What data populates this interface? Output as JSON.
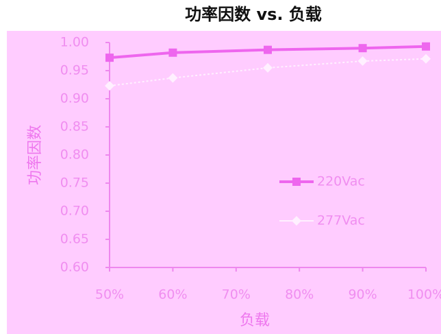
{
  "chart_data": {
    "type": "line",
    "title": "功率因数 vs. 负载",
    "x_label": "负载",
    "y_label": "功率因数",
    "x": [
      50,
      60,
      75,
      90,
      100
    ],
    "series": [
      {
        "name": "220Vac",
        "color": "#ee66ee",
        "marker": "square",
        "values": [
          0.973,
          0.982,
          0.987,
          0.99,
          0.993
        ]
      },
      {
        "name": "277Vac",
        "color": "#fff0ff",
        "marker": "diamond",
        "values": [
          0.923,
          0.937,
          0.955,
          0.967,
          0.971
        ]
      }
    ],
    "xlim": [
      50,
      100
    ],
    "xticks": [
      {
        "value": 50,
        "label": "50%"
      },
      {
        "value": 60,
        "label": "60%"
      },
      {
        "value": 70,
        "label": "70%"
      },
      {
        "value": 80,
        "label": "80%"
      },
      {
        "value": 90,
        "label": "90%"
      },
      {
        "value": 100,
        "label": "100%"
      }
    ],
    "ylim": [
      0.6,
      1.0
    ],
    "yticks": [
      {
        "value": 0.6,
        "label": "0.60"
      },
      {
        "value": 0.65,
        "label": "0.65"
      },
      {
        "value": 0.7,
        "label": "0.70"
      },
      {
        "value": 0.75,
        "label": "0.75"
      },
      {
        "value": 0.8,
        "label": "0.80"
      },
      {
        "value": 0.85,
        "label": "0.85"
      },
      {
        "value": 0.9,
        "label": "0.90"
      },
      {
        "value": 0.95,
        "label": "0.95"
      },
      {
        "value": 1.0,
        "label": "1.00"
      }
    ],
    "grid": false
  }
}
